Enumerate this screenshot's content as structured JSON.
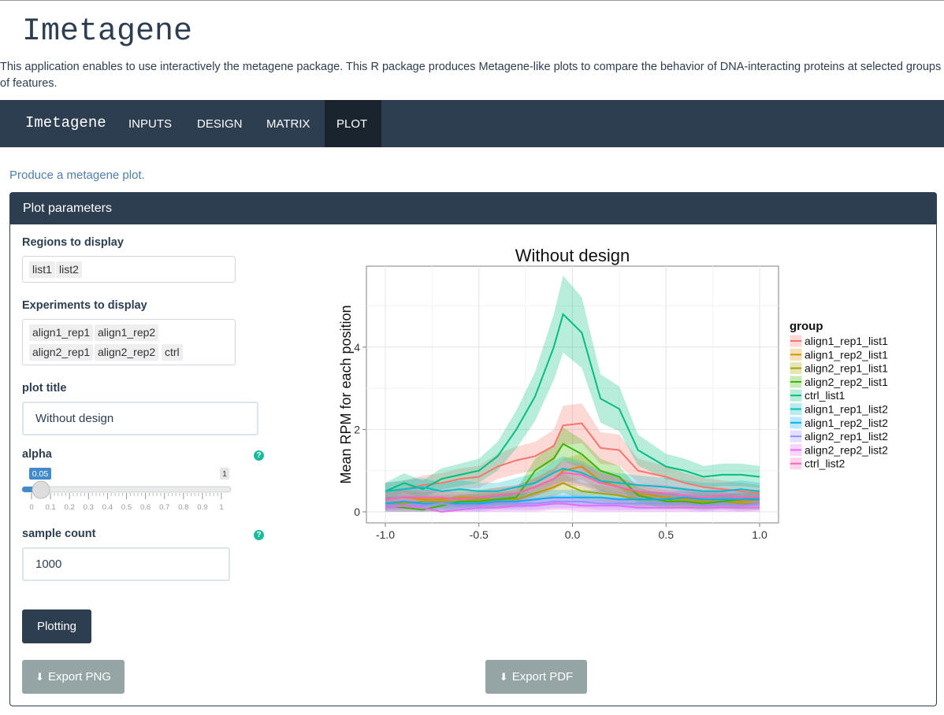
{
  "app": {
    "title": "Imetagene",
    "intro": "This application enables to use interactively the metagene package. This R package produces Metagene-like plots to compare the behavior of DNA-interacting proteins at selected groups of features."
  },
  "navbar": {
    "brand": "Imetagene",
    "items": [
      "INPUTS",
      "DESIGN",
      "MATRIX",
      "PLOT"
    ],
    "active": "PLOT"
  },
  "page": {
    "subtitle": "Produce a metagene plot.",
    "panel_title": "Plot parameters"
  },
  "form": {
    "regions_label": "Regions to display",
    "regions": [
      "list1",
      "list2"
    ],
    "experiments_label": "Experiments to display",
    "experiments": [
      "align1_rep1",
      "align1_rep2",
      "align2_rep1",
      "align2_rep2",
      "ctrl"
    ],
    "title_label": "plot title",
    "title_value": "Without design",
    "alpha_label": "alpha",
    "alpha_value": "0.05",
    "alpha_value_num": 0.05,
    "alpha_max": "1",
    "alpha_ticks": [
      "0",
      "0.1",
      "0.2",
      "0.3",
      "0.4",
      "0.5",
      "0.6",
      "0.7",
      "0.8",
      "0.9",
      "1"
    ],
    "sample_label": "sample count",
    "sample_value": "1000",
    "help_glyph": "?",
    "plot_button": "Plotting",
    "export_png": "Export PNG",
    "export_pdf": "Export PDF",
    "download_icon": "download-icon"
  },
  "chart_data": {
    "type": "line",
    "title": "Without design",
    "xlabel": "",
    "ylabel": "Mean RPM for each position",
    "xlim": [
      -1.0,
      1.0
    ],
    "ylim": [
      0,
      6
    ],
    "xticks": [
      "-1.0",
      "-0.5",
      "0.0",
      "0.5",
      "1.0"
    ],
    "yticks": [
      "0",
      "2",
      "4"
    ],
    "legend_title": "group",
    "legend_position": "right",
    "grid": true,
    "x": [
      -1.0,
      -0.9,
      -0.8,
      -0.7,
      -0.6,
      -0.5,
      -0.4,
      -0.3,
      -0.2,
      -0.1,
      -0.05,
      0.05,
      0.15,
      0.25,
      0.35,
      0.5,
      0.6,
      0.7,
      0.8,
      0.9,
      1.0
    ],
    "series": [
      {
        "name": "align1_rep1_list1",
        "color": "#f8766d",
        "values": [
          0.5,
          0.55,
          0.65,
          0.7,
          0.8,
          0.85,
          1.1,
          1.25,
          1.35,
          1.6,
          2.1,
          2.15,
          1.55,
          1.5,
          1.0,
          0.85,
          0.7,
          0.6,
          0.55,
          0.5,
          0.45
        ]
      },
      {
        "name": "align1_rep2_list1",
        "color": "#d89000",
        "values": [
          0.3,
          0.35,
          0.3,
          0.3,
          0.35,
          0.35,
          0.4,
          0.45,
          0.6,
          0.8,
          1.0,
          1.1,
          0.75,
          0.6,
          0.45,
          0.35,
          0.3,
          0.3,
          0.3,
          0.25,
          0.3
        ]
      },
      {
        "name": "align2_rep1_list1",
        "color": "#a3a500",
        "values": [
          0.2,
          0.2,
          0.25,
          0.25,
          0.25,
          0.3,
          0.3,
          0.3,
          0.45,
          0.6,
          0.7,
          0.5,
          0.45,
          0.4,
          0.3,
          0.3,
          0.25,
          0.25,
          0.25,
          0.2,
          0.2
        ]
      },
      {
        "name": "align2_rep2_list1",
        "color": "#39b600",
        "values": [
          0.15,
          0.1,
          0.05,
          0.15,
          0.25,
          0.25,
          0.3,
          0.35,
          1.0,
          1.3,
          1.65,
          1.4,
          1.0,
          0.85,
          0.4,
          0.25,
          0.25,
          0.2,
          0.25,
          0.3,
          0.35
        ]
      },
      {
        "name": "ctrl_list1",
        "color": "#00bf7d",
        "values": [
          0.5,
          0.7,
          0.55,
          0.8,
          0.9,
          1.0,
          1.35,
          2.0,
          2.8,
          4.0,
          4.8,
          4.35,
          2.75,
          2.5,
          1.5,
          1.1,
          1.0,
          0.85,
          0.9,
          0.9,
          0.85
        ]
      },
      {
        "name": "align1_rep1_list2",
        "color": "#00bfc4",
        "values": [
          0.5,
          0.55,
          0.6,
          0.5,
          0.55,
          0.5,
          0.5,
          0.6,
          0.7,
          0.95,
          1.05,
          0.95,
          0.75,
          0.7,
          0.65,
          0.6,
          0.55,
          0.5,
          0.5,
          0.55,
          0.5
        ]
      },
      {
        "name": "align1_rep2_list2",
        "color": "#00b0f6",
        "values": [
          0.2,
          0.25,
          0.2,
          0.2,
          0.2,
          0.2,
          0.25,
          0.25,
          0.3,
          0.35,
          0.35,
          0.35,
          0.35,
          0.3,
          0.3,
          0.3,
          0.35,
          0.3,
          0.3,
          0.3,
          0.3
        ]
      },
      {
        "name": "align2_rep1_list2",
        "color": "#9590ff",
        "values": [
          0.15,
          0.15,
          0.15,
          0.2,
          0.15,
          0.15,
          0.2,
          0.2,
          0.2,
          0.25,
          0.25,
          0.25,
          0.2,
          0.2,
          0.2,
          0.2,
          0.2,
          0.15,
          0.2,
          0.15,
          0.2
        ]
      },
      {
        "name": "align2_rep2_list2",
        "color": "#e76bf3",
        "values": [
          0.1,
          0.15,
          0.1,
          0.0,
          0.05,
          0.1,
          0.1,
          0.15,
          0.15,
          0.2,
          0.2,
          0.15,
          0.15,
          0.15,
          0.1,
          0.1,
          0.1,
          0.1,
          0.1,
          0.1,
          0.1
        ]
      },
      {
        "name": "ctrl_list2",
        "color": "#ff62bc",
        "values": [
          0.3,
          0.35,
          0.35,
          0.35,
          0.3,
          0.35,
          0.4,
          0.45,
          0.6,
          0.8,
          0.95,
          0.9,
          0.7,
          0.6,
          0.5,
          0.45,
          0.4,
          0.35,
          0.4,
          0.35,
          0.35
        ]
      }
    ]
  }
}
